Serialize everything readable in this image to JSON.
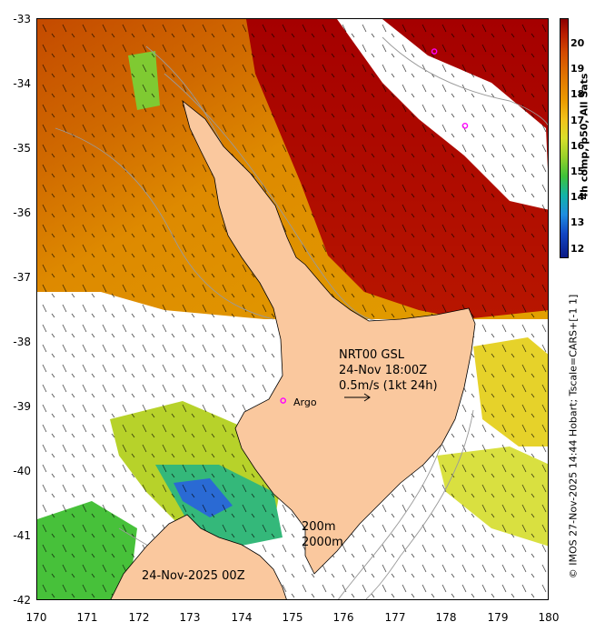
{
  "map": {
    "lat_ticks": [
      "-33",
      "-34",
      "-35",
      "-36",
      "-37",
      "-38",
      "-39",
      "-40",
      "-41",
      "-42"
    ],
    "lon_ticks": [
      "170",
      "171",
      "172",
      "173",
      "174",
      "175",
      "176",
      "177",
      "178",
      "179",
      "180"
    ],
    "lon_range": [
      170,
      180
    ],
    "lat_range": [
      -42,
      -33
    ],
    "argo_label": "Argo",
    "current_title": "NRT00 GSL",
    "current_time": "24-Nov 18:00Z",
    "current_scale": "0.5m/s (1kt 24h)",
    "isobath_200": "200m",
    "isobath_2000": "2000m",
    "date_stamp": "24-Nov-2025 00Z",
    "argo_floats": [
      {
        "lon": 174.8,
        "lat": -38.9
      },
      {
        "lon": 177.75,
        "lat": -33.5
      },
      {
        "lon": 178.35,
        "lat": -34.65
      }
    ],
    "colors": {
      "land": "#fac89e",
      "coast": "#000000",
      "isobath": "#9a9a9a",
      "argo": "#ff00ff",
      "cloud": "#ffffff"
    }
  },
  "colorbar": {
    "title": "4h comp, p50, All Sats",
    "range": [
      11.5,
      21
    ],
    "ticks": [
      "20",
      "19",
      "18",
      "17",
      "16",
      "15",
      "14",
      "13",
      "12"
    ]
  },
  "credit": "© IMOS 27-Nov-2025 14:44 Hobart; Tscale=CARS+[-1 1]"
}
